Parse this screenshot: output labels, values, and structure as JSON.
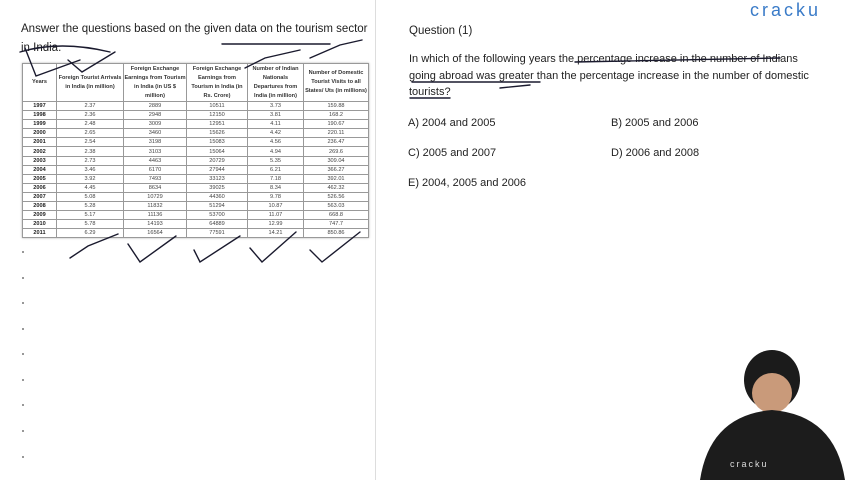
{
  "left": {
    "title": "Answer the questions based on the given data on the tourism sector in India.",
    "table": {
      "headers": [
        "Years",
        "Foreign Tourist Arrivals in India (in million)",
        "Foreign Exchange Earnings from Tourism in India (in US $ million)",
        "Foreign Exchange Earnings from Tourism in India (in Rs. Crore)",
        "Number of Indian Nationals Departures from India (in million)",
        "Number of Domestic Tourist Visits to all States/ Uts (in millions)"
      ],
      "rows": [
        [
          "1997",
          "2.37",
          "2889",
          "10511",
          "3.73",
          "159.88"
        ],
        [
          "1998",
          "2.36",
          "2948",
          "12150",
          "3.81",
          "168.2"
        ],
        [
          "1999",
          "2.48",
          "3009",
          "12951",
          "4.11",
          "190.67"
        ],
        [
          "2000",
          "2.65",
          "3460",
          "15626",
          "4.42",
          "220.11"
        ],
        [
          "2001",
          "2.54",
          "3198",
          "15083",
          "4.56",
          "236.47"
        ],
        [
          "2002",
          "2.38",
          "3103",
          "15064",
          "4.94",
          "269.6"
        ],
        [
          "2003",
          "2.73",
          "4463",
          "20729",
          "5.35",
          "309.04"
        ],
        [
          "2004",
          "3.46",
          "6170",
          "27944",
          "6.21",
          "366.27"
        ],
        [
          "2005",
          "3.92",
          "7493",
          "33123",
          "7.18",
          "392.01"
        ],
        [
          "2006",
          "4.45",
          "8634",
          "39025",
          "8.34",
          "462.32"
        ],
        [
          "2007",
          "5.08",
          "10729",
          "44360",
          "9.78",
          "526.56"
        ],
        [
          "2008",
          "5.28",
          "11832",
          "51294",
          "10.87",
          "563.03"
        ],
        [
          "2009",
          "5.17",
          "11136",
          "53700",
          "11.07",
          "668.8"
        ],
        [
          "2010",
          "5.78",
          "14193",
          "64889",
          "12.99",
          "747.7"
        ],
        [
          "2011",
          "6.29",
          "16564",
          "77591",
          "14.21",
          "850.86"
        ]
      ]
    }
  },
  "question": {
    "title": "Question (1)",
    "text": "In which of the following years the percentage increase in the number of Indians going abroad was greater than the percentage increase in the number of domestic tourists?",
    "options": [
      "A) 2004 and 2005",
      "B) 2005 and 2006",
      "C) 2005 and 2007",
      "D) 2006 and 2008",
      "E) 2004, 2005 and 2006"
    ]
  },
  "logo": "cracku",
  "colors": {
    "logo": "#3a7bc8",
    "ink": "#1a1a2e"
  }
}
